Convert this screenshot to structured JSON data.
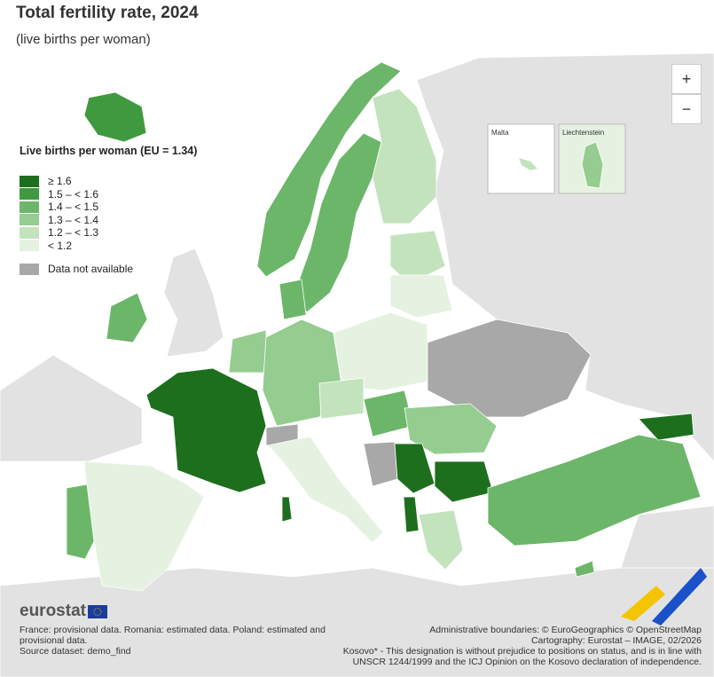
{
  "header": {
    "title": "Total fertility rate, 2024",
    "subtitle": "(live births per woman)"
  },
  "legend": {
    "title": "Live births per woman (EU = 1.34)",
    "items": [
      {
        "label": "≥ 1.6",
        "color": "#1d6f1d"
      },
      {
        "label": "1.5 – < 1.6",
        "color": "#3f9a3f"
      },
      {
        "label": "1.4 – < 1.5",
        "color": "#6cb66a"
      },
      {
        "label": "1.3 – < 1.4",
        "color": "#95cc90"
      },
      {
        "label": "1.2 – < 1.3",
        "color": "#c3e3bd"
      },
      {
        "label": "< 1.2",
        "color": "#e5f2e2"
      }
    ],
    "not_available": {
      "label": "Data not available",
      "color": "#a8a8a8"
    }
  },
  "map": {
    "zoom_in": "+",
    "zoom_out": "−",
    "insets": [
      "Malta",
      "Liechtenstein"
    ]
  },
  "footer": {
    "logo": "eurostat",
    "notes": "France: provisional data. Romania: estimated data. Poland: estimated and provisional data.",
    "source": "Source dataset: demo_find",
    "credits": [
      "Administrative boundaries: © EuroGeographics © OpenStreetMap",
      "Cartography: Eurostat – IMAGE, 02/2026",
      "Kosovo* - This designation is without prejudice to positions on status, and is in line with UNSCR 1244/1999 and the ICJ Opinion on the Kosovo declaration of independence."
    ]
  }
}
